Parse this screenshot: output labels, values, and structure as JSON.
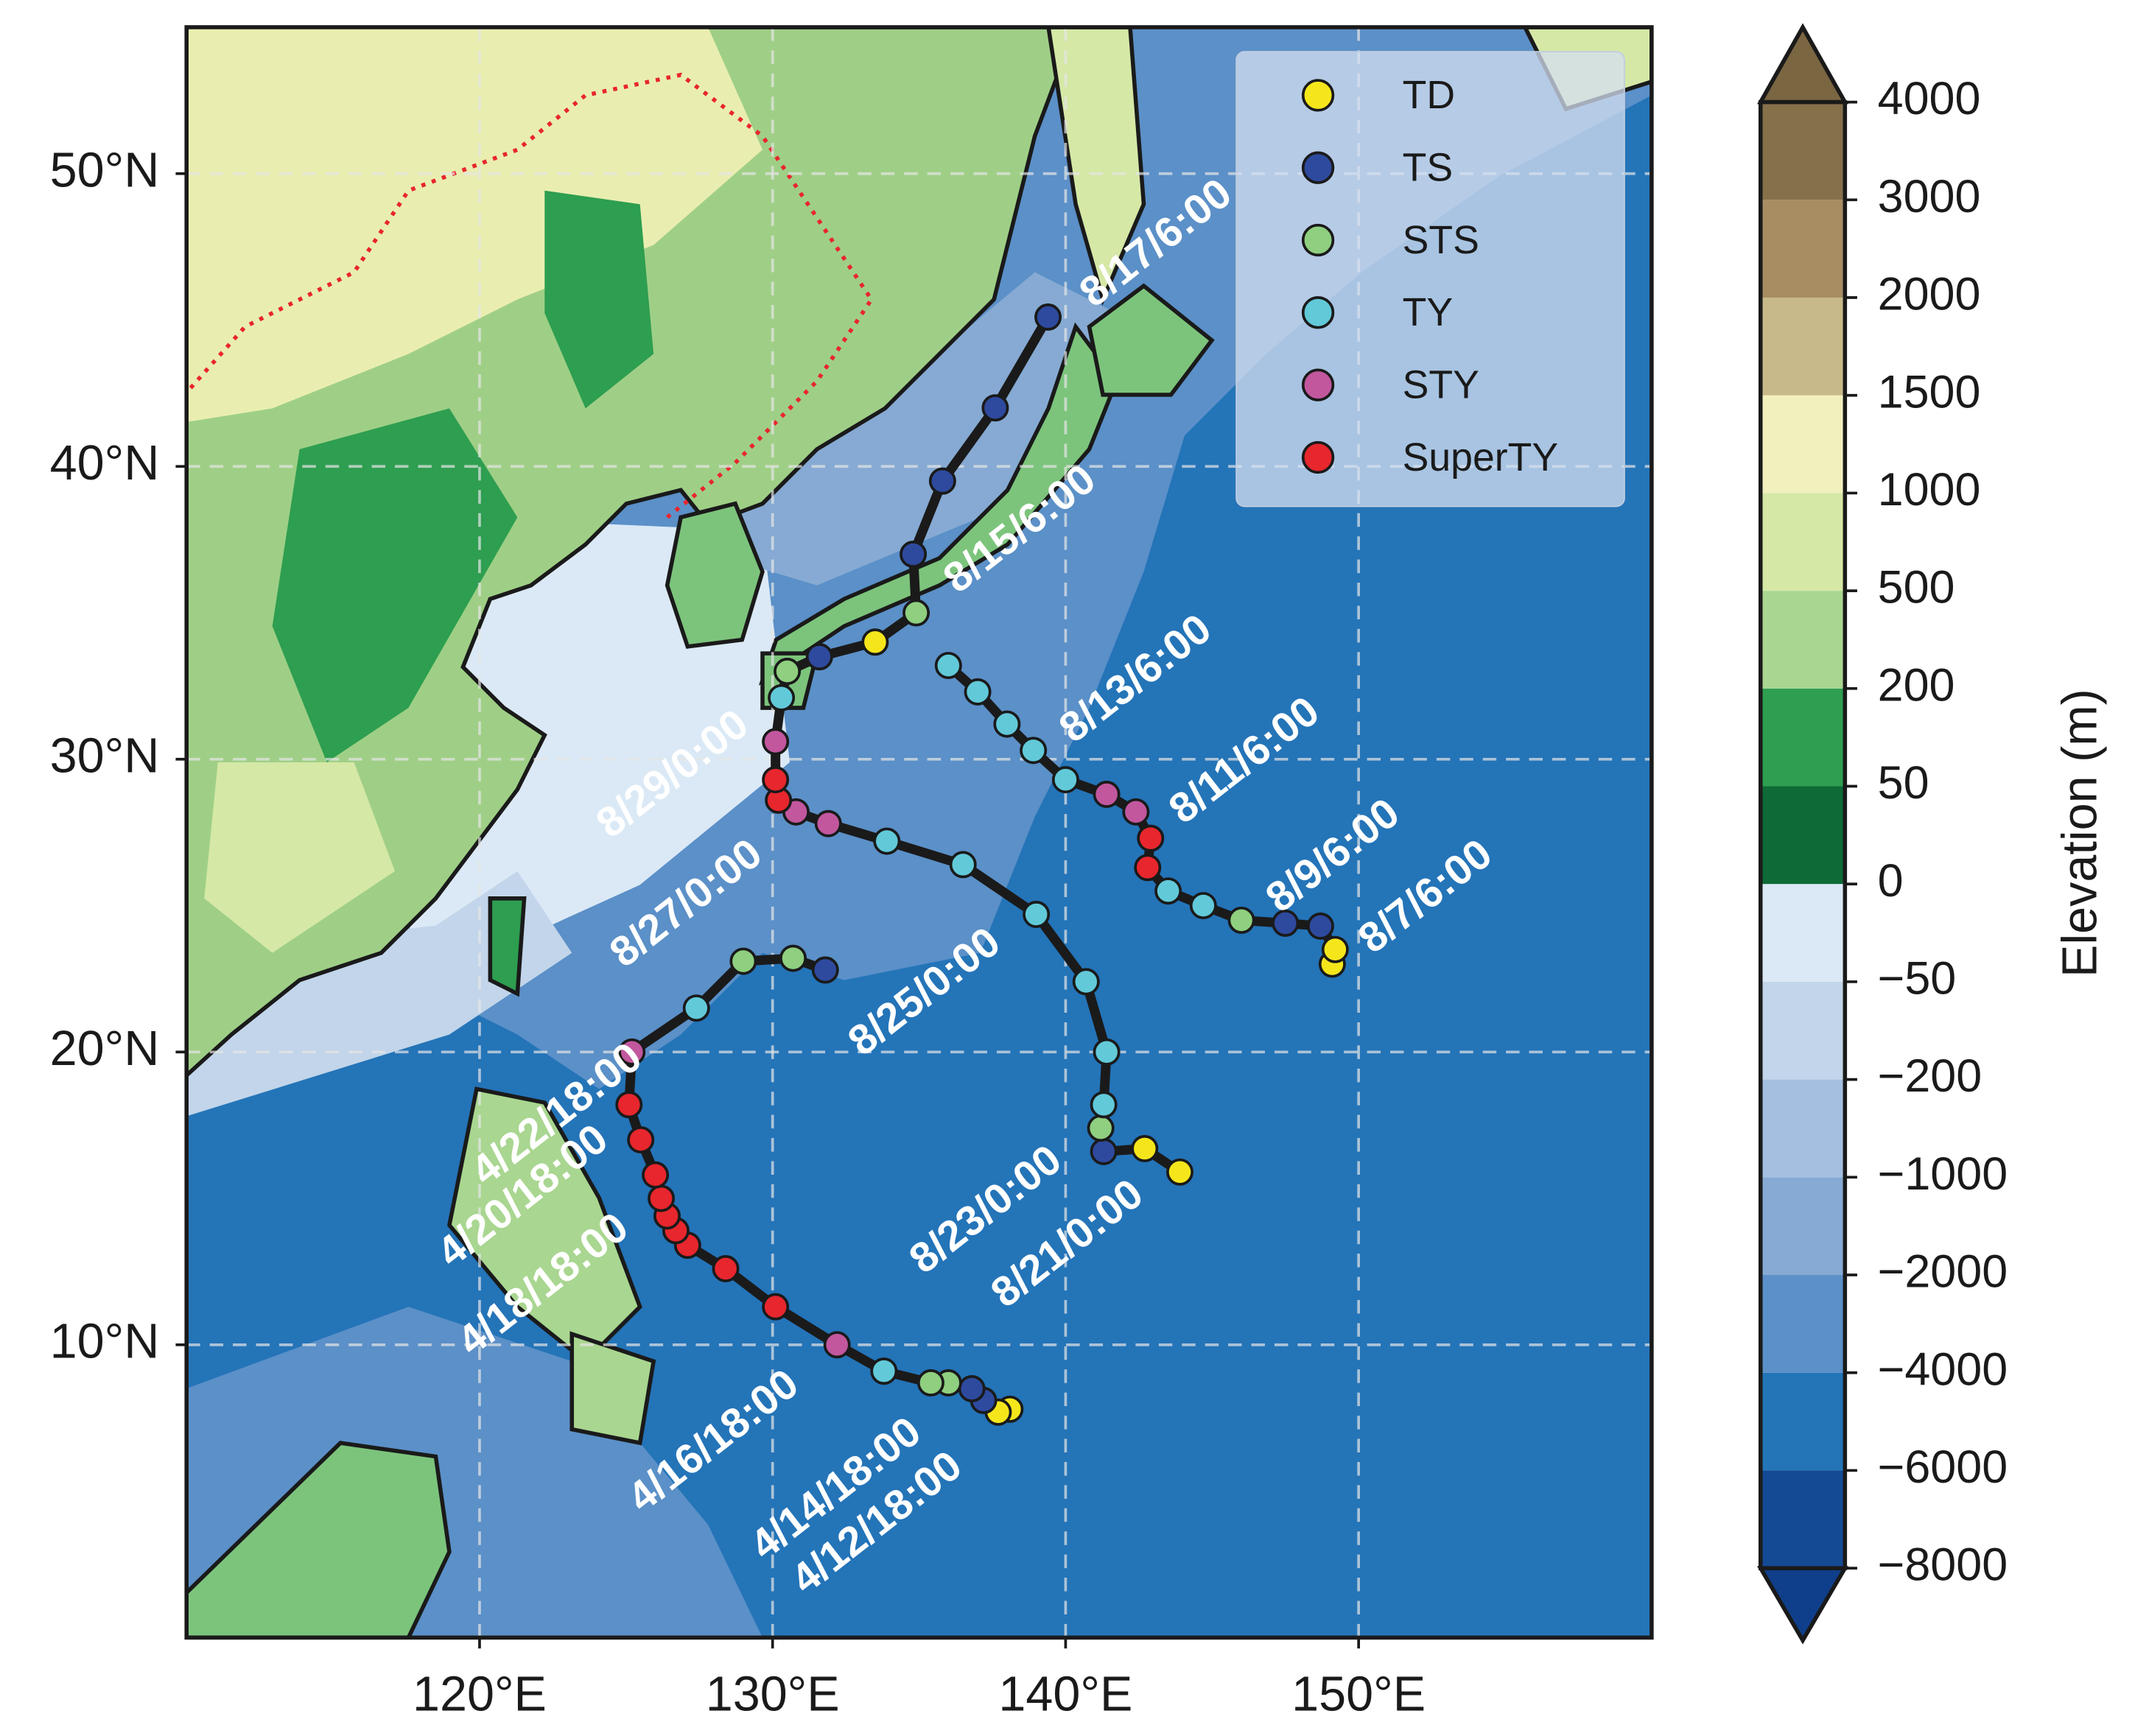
{
  "chart_data": {
    "type": "map",
    "xlim": [
      110,
      160
    ],
    "ylim": [
      0,
      55
    ],
    "grid": true,
    "xticks": [
      {
        "value": 120,
        "label": "120°E"
      },
      {
        "value": 130,
        "label": "130°E"
      },
      {
        "value": 140,
        "label": "140°E"
      },
      {
        "value": 150,
        "label": "150°E"
      }
    ],
    "yticks": [
      {
        "value": 10,
        "label": "10°N"
      },
      {
        "value": 20,
        "label": "20°N"
      },
      {
        "value": 30,
        "label": "30°N"
      },
      {
        "value": 40,
        "label": "40°N"
      },
      {
        "value": 50,
        "label": "50°N"
      }
    ],
    "legend": {
      "position": "upper right",
      "items": [
        {
          "name": "TD",
          "color": "#f5e61c"
        },
        {
          "name": "TS",
          "color": "#2e4a9e"
        },
        {
          "name": "STS",
          "color": "#8fcf7f"
        },
        {
          "name": "TY",
          "color": "#62c9d8"
        },
        {
          "name": "STY",
          "color": "#c2579e"
        },
        {
          "name": "SuperTY",
          "color": "#e8262d"
        }
      ]
    },
    "tracks": [
      {
        "lon": [
          138.1,
          137.7,
          137.2,
          136.8,
          136.0,
          135.4,
          133.8,
          132.2,
          130.1,
          128.4,
          127.1,
          126.7,
          126.4,
          126.2,
          126.0,
          125.5,
          125.1,
          125.2,
          127.4,
          129.0,
          130.7,
          131.8
        ],
        "lat": [
          7.8,
          7.7,
          8.1,
          8.5,
          8.7,
          8.7,
          9.1,
          10.0,
          11.3,
          12.6,
          13.4,
          13.9,
          14.4,
          15.0,
          15.8,
          17.0,
          18.2,
          20.0,
          21.5,
          23.1,
          23.2,
          22.8
        ],
        "category": [
          "TD",
          "TD",
          "TS",
          "TS",
          "STS",
          "STS",
          "TY",
          "STY",
          "SuperTY",
          "SuperTY",
          "SuperTY",
          "SuperTY",
          "SuperTY",
          "SuperTY",
          "SuperTY",
          "SuperTY",
          "SuperTY",
          "STY",
          "TY",
          "STS",
          "STS",
          "TS"
        ]
      },
      {
        "lon": [
          143.9,
          142.7,
          141.3,
          141.2,
          141.3,
          141.4,
          140.7,
          139.0,
          136.5,
          133.9,
          131.9,
          130.8,
          130.2,
          130.1,
          130.1,
          130.3,
          130.5,
          131.6,
          133.5,
          134.9,
          134.8,
          135.8,
          137.6,
          139.4
        ],
        "lat": [
          15.9,
          16.7,
          16.6,
          17.4,
          18.2,
          20.0,
          22.4,
          24.7,
          26.4,
          27.2,
          27.8,
          28.2,
          28.6,
          29.3,
          30.6,
          32.1,
          33.0,
          33.5,
          34.0,
          35.0,
          37.0,
          39.5,
          42.0,
          45.1
        ],
        "category": [
          "TD",
          "TD",
          "TS",
          "STS",
          "TY",
          "TY",
          "TY",
          "TY",
          "TY",
          "TY",
          "STY",
          "STY",
          "SuperTY",
          "SuperTY",
          "STY",
          "TY",
          "STS",
          "TS",
          "TD",
          "STS",
          "TS",
          "TS",
          "TS",
          "TS"
        ]
      },
      {
        "lon": [
          149.1,
          149.2,
          148.7,
          147.5,
          146.0,
          144.7,
          143.5,
          142.8,
          142.9,
          142.4,
          141.4,
          140.0,
          138.9,
          138.0,
          137.0,
          136.0
        ],
        "lat": [
          23.0,
          23.5,
          24.3,
          24.4,
          24.5,
          25.0,
          25.5,
          26.3,
          27.3,
          28.2,
          28.8,
          29.3,
          30.3,
          31.2,
          32.3,
          33.2
        ],
        "category": [
          "TD",
          "TD",
          "TS",
          "TS",
          "STS",
          "TY",
          "TY",
          "SuperTY",
          "SuperTY",
          "STY",
          "STY",
          "TY",
          "TY",
          "TY",
          "TY",
          "TY"
        ]
      }
    ],
    "date_labels": [
      "8/17/6:00",
      "8/15/6:00",
      "8/13/6:00",
      "8/11/6:00",
      "8/9/6:00",
      "8/7/6:00",
      "8/29/0:00",
      "8/27/0:00",
      "8/25/0:00",
      "8/23/0:00",
      "8/21/0:00",
      "4/22/18:00",
      "4/20/18:00",
      "4/18/18:00",
      "4/16/18:00",
      "4/14/18:00",
      "4/12/18:00"
    ],
    "colorbar": {
      "label": "Elevation (m)",
      "ticks": [
        {
          "value": -8000,
          "label": "−8000"
        },
        {
          "value": -6000,
          "label": "−6000"
        },
        {
          "value": -4000,
          "label": "−4000"
        },
        {
          "value": -2000,
          "label": "−2000"
        },
        {
          "value": -1000,
          "label": "−1000"
        },
        {
          "value": -200,
          "label": "−200"
        },
        {
          "value": -50,
          "label": "−50"
        },
        0,
        50,
        200,
        500,
        1000,
        1500,
        2000,
        3000,
        4000
      ],
      "colors": [
        "#144a94",
        "#2474b8",
        "#5b90c8",
        "#86aad3",
        "#a4bfe0",
        "#c2d5ea",
        "#dbe9f6",
        "#0e6a36",
        "#2e9e50",
        "#a9d690",
        "#d5e8a6",
        "#f2f1bd",
        "#c8b98a",
        "#a88d63",
        "#86704a"
      ],
      "under_color": "#0f3f8a",
      "over_color": "#7b6642"
    }
  }
}
